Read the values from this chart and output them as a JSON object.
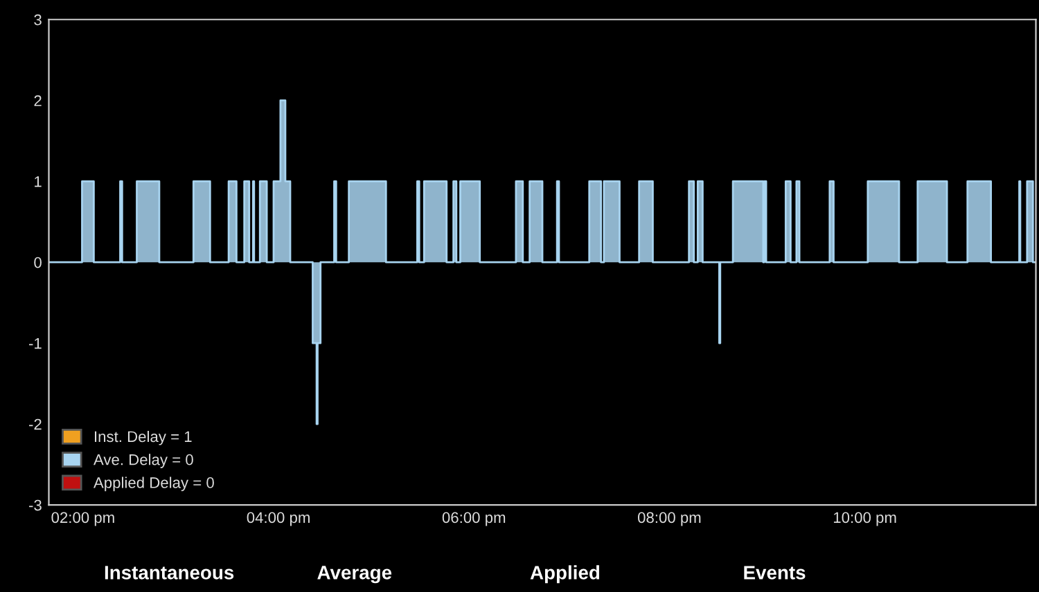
{
  "chart_data": {
    "type": "step",
    "x": [
      13.65,
      13.99,
      14.11,
      14.38,
      14.4,
      14.55,
      14.78,
      15.13,
      15.3,
      15.49,
      15.57,
      15.65,
      15.7,
      15.74,
      15.75,
      15.81,
      15.88,
      15.95,
      16.02,
      16.07,
      16.12,
      16.35,
      16.39,
      16.4,
      16.43,
      16.57,
      16.59,
      16.72,
      17.1,
      17.42,
      17.44,
      17.49,
      17.72,
      17.79,
      17.82,
      17.86,
      18.06,
      18.43,
      18.5,
      18.57,
      18.7,
      18.85,
      18.87,
      19.18,
      19.3,
      19.33,
      19.49,
      19.69,
      19.83,
      20.2,
      20.25,
      20.29,
      20.34,
      20.51,
      20.52,
      20.65,
      20.96,
      20.97,
      20.99,
      21.19,
      21.24,
      21.3,
      21.33,
      21.64,
      21.68,
      22.03,
      22.35,
      22.54,
      22.84,
      23.05,
      23.29,
      23.58,
      23.59,
      23.66,
      23.72,
      23.75
    ],
    "series": [
      {
        "name": "Inst. Delay = 1",
        "color": "#f0a020",
        "values": [
          null,
          null,
          null,
          null,
          null,
          null,
          null,
          null,
          null,
          null,
          null,
          null,
          null,
          null,
          null,
          null,
          null,
          null,
          null,
          null,
          null,
          null,
          null,
          null,
          null,
          null,
          null,
          null,
          null,
          null,
          null,
          null,
          null,
          null,
          null,
          null,
          null,
          null,
          null,
          null,
          null,
          null,
          null,
          null,
          null,
          null,
          null,
          null,
          null,
          null,
          null,
          null,
          null,
          null,
          null,
          null,
          null,
          null,
          null,
          null,
          null,
          null,
          null,
          null,
          null,
          null,
          null,
          null,
          null,
          null,
          null,
          null,
          null,
          null,
          null,
          null
        ]
      },
      {
        "name": "Ave. Delay = 0",
        "color": "#a8d4f0",
        "values": [
          0,
          1,
          0,
          1,
          0,
          1,
          0,
          1,
          0,
          1,
          0,
          1,
          0,
          1,
          0,
          1,
          0,
          1,
          2,
          1,
          0,
          -1,
          -2,
          -1,
          0,
          1,
          0,
          1,
          0,
          1,
          0,
          1,
          0,
          1,
          0,
          1,
          0,
          1,
          0,
          1,
          0,
          1,
          0,
          1,
          0,
          1,
          0,
          1,
          0,
          1,
          0,
          1,
          0,
          -1,
          0,
          1,
          0,
          1,
          0,
          1,
          0,
          1,
          0,
          1,
          0,
          1,
          0,
          1,
          0,
          1,
          0,
          1,
          0,
          1,
          0,
          0
        ]
      },
      {
        "name": "Applied Delay = 0",
        "color": "#c01010",
        "values": [
          null,
          null,
          null,
          null,
          null,
          null,
          null,
          null,
          null,
          null,
          null,
          null,
          null,
          null,
          null,
          null,
          null,
          null,
          null,
          null,
          null,
          null,
          null,
          null,
          null,
          null,
          null,
          null,
          null,
          null,
          null,
          null,
          null,
          null,
          null,
          null,
          null,
          null,
          null,
          null,
          null,
          null,
          null,
          null,
          null,
          null,
          null,
          null,
          null,
          null,
          null,
          null,
          null,
          null,
          null,
          null,
          null,
          null,
          null,
          null,
          null,
          null,
          null,
          null,
          null,
          null,
          null,
          null,
          null,
          null,
          null,
          null,
          null,
          null,
          null,
          null
        ]
      }
    ],
    "xlim": [
      13.65,
      23.75
    ],
    "xticks": [
      {
        "value": 14,
        "label": "02:00 pm"
      },
      {
        "value": 16,
        "label": "04:00 pm"
      },
      {
        "value": 18,
        "label": "06:00 pm"
      },
      {
        "value": 20,
        "label": "08:00 pm"
      },
      {
        "value": 22,
        "label": "10:00 pm"
      }
    ],
    "ylim": [
      -3,
      3
    ],
    "yticks": [
      -3,
      -2,
      -1,
      0,
      1,
      2,
      3
    ],
    "legend": "lower left",
    "grid": false,
    "annotations": [
      "Instantaneous",
      "Average",
      "Applied",
      "Events"
    ]
  }
}
